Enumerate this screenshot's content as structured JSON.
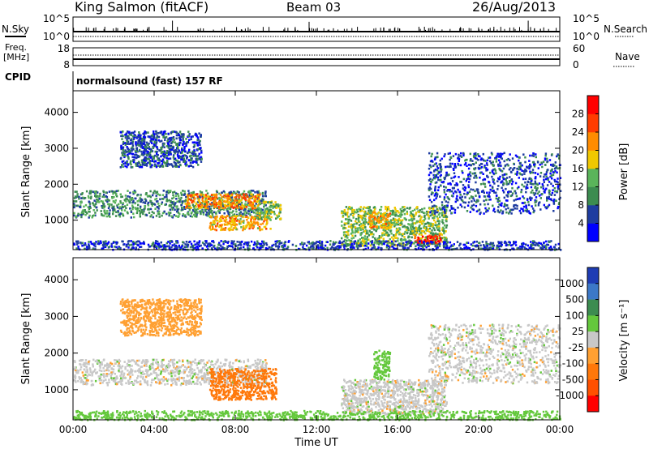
{
  "header": {
    "station": "King Salmon (fitACF)",
    "beam": "Beam 03",
    "date": "26/Aug/2013"
  },
  "status_panels": {
    "nsky_label": "N.Sky",
    "nsearch_label": "N.Search",
    "freq_label_1": "Freq.",
    "freq_label_2": "[MHz]",
    "nave_label": "Nave",
    "cpid_label": "CPID",
    "noise_ticks_left": [
      "10^5",
      "10^0"
    ],
    "noise_ticks_right": [
      "10^5",
      "10^0"
    ],
    "freq_ticks": [
      "18",
      "8"
    ],
    "nave_ticks": [
      "60",
      "0"
    ],
    "cpid_text": "normalsound (fast) 157 RF"
  },
  "x_axis": {
    "label": "Time UT",
    "ticks": [
      "00:00",
      "04:00",
      "08:00",
      "12:00",
      "16:00",
      "20:00",
      "00:00"
    ],
    "tick_hours": [
      0,
      4,
      8,
      12,
      16,
      20,
      24
    ],
    "range_hours": [
      0,
      24
    ]
  },
  "range_axis": {
    "ylabel": "Slant Range [km]",
    "ticks": [
      "1000",
      "2000",
      "3000",
      "4000"
    ],
    "tick_values": [
      1000,
      2000,
      3000,
      4000
    ],
    "range_km": [
      180,
      4600
    ]
  },
  "power_colorbar": {
    "label": "Power [dB]",
    "ticks": [
      "4",
      "8",
      "12",
      "16",
      "20",
      "24",
      "28"
    ],
    "colors": [
      "#0000ff",
      "#1e3ca0",
      "#3c8c50",
      "#5ab45a",
      "#f0c800",
      "#ff8c00",
      "#ff3c00",
      "#ff0000"
    ]
  },
  "velocity_colorbar": {
    "label": "Velocity [m s⁻¹]",
    "ticks": [
      "1000",
      "500",
      "100",
      "25",
      "-25",
      "-100",
      "-500",
      "-1000"
    ],
    "colors": [
      "#1e3cb4",
      "#3c78c8",
      "#3c8c50",
      "#64c83c",
      "#c8c8c8",
      "#ffa032",
      "#ff780a",
      "#ff5000",
      "#ff0000"
    ]
  },
  "chart_data": [
    {
      "type": "heatmap",
      "title": "Power",
      "xlabel": "Time UT",
      "ylabel": "Slant Range [km]",
      "xlim": [
        0,
        24
      ],
      "ylim": [
        180,
        4600
      ],
      "colorbar_label": "Power [dB]",
      "regions": [
        {
          "t": [
            0.0,
            9.5
          ],
          "r": [
            1100,
            1850
          ],
          "value_db": 10
        },
        {
          "t": [
            5.5,
            9.2
          ],
          "r": [
            1350,
            1750
          ],
          "value_db": 22
        },
        {
          "t": [
            6.7,
            9.7
          ],
          "r": [
            750,
            1150
          ],
          "value_db": 20
        },
        {
          "t": [
            9.0,
            10.2
          ],
          "r": [
            1050,
            1550
          ],
          "value_db": 14
        },
        {
          "t": [
            2.3,
            6.3
          ],
          "r": [
            2500,
            3500
          ],
          "value_db": 6
        },
        {
          "t": [
            13.2,
            18.4
          ],
          "r": [
            300,
            1400
          ],
          "value_db": 14
        },
        {
          "t": [
            16.8,
            18.1
          ],
          "r": [
            350,
            600
          ],
          "value_db": 28
        },
        {
          "t": [
            14.5,
            15.6
          ],
          "r": [
            800,
            1250
          ],
          "value_db": 20
        },
        {
          "t": [
            17.5,
            24.0
          ],
          "r": [
            1200,
            2900
          ],
          "value_db": 6
        },
        {
          "t": [
            0.0,
            24.0
          ],
          "r": [
            200,
            450
          ],
          "value_db": 5
        }
      ]
    },
    {
      "type": "heatmap",
      "title": "Velocity",
      "xlabel": "Time UT",
      "ylabel": "Slant Range [km]",
      "xlim": [
        0,
        24
      ],
      "ylim": [
        180,
        4600
      ],
      "colorbar_label": "Velocity [m s-1]",
      "regions": [
        {
          "t": [
            0.0,
            9.5
          ],
          "r": [
            1150,
            1850
          ],
          "value_ms": 0
        },
        {
          "t": [
            6.7,
            10.0
          ],
          "r": [
            750,
            1600
          ],
          "value_ms": -300
        },
        {
          "t": [
            2.3,
            6.3
          ],
          "r": [
            2500,
            3500
          ],
          "value_ms": -60
        },
        {
          "t": [
            13.2,
            18.4
          ],
          "r": [
            350,
            1300
          ],
          "value_ms": 0
        },
        {
          "t": [
            14.8,
            15.6
          ],
          "r": [
            1300,
            2100
          ],
          "value_ms": 60
        },
        {
          "t": [
            17.5,
            24.0
          ],
          "r": [
            1200,
            2800
          ],
          "value_ms": 0
        },
        {
          "t": [
            0.0,
            24.0
          ],
          "r": [
            200,
            450
          ],
          "value_ms": 60
        }
      ]
    }
  ]
}
